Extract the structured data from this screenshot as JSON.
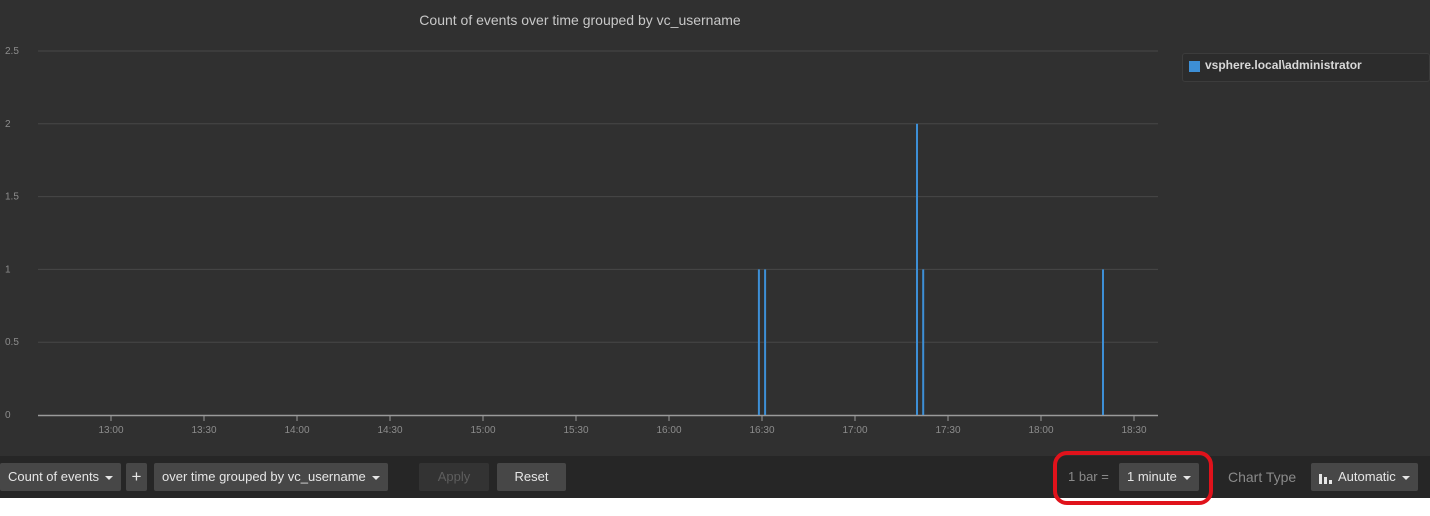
{
  "chart_data": {
    "type": "bar",
    "title": "Count of events over time grouped by vc_username",
    "xlabel": "",
    "ylabel": "",
    "ylim": [
      0,
      2.5
    ],
    "yticks": [
      "0",
      "0.5",
      "1",
      "1.5",
      "2",
      "2.5"
    ],
    "xticks": [
      "13:00",
      "13:30",
      "14:00",
      "14:30",
      "15:00",
      "15:30",
      "16:00",
      "16:30",
      "17:00",
      "17:30",
      "18:00",
      "18:30"
    ],
    "bar_interval": "1 minute",
    "grid": true,
    "legend_position": "right",
    "series": [
      {
        "name": "vsphere.local\\administrator",
        "color": "#3d8fd6",
        "points": [
          {
            "x": "16:29",
            "y": 1
          },
          {
            "x": "16:31",
            "y": 1
          },
          {
            "x": "17:20",
            "y": 2
          },
          {
            "x": "17:22",
            "y": 1
          },
          {
            "x": "18:20",
            "y": 1
          }
        ]
      }
    ]
  },
  "legend": {
    "items": [
      {
        "label": "vsphere.local\\administrator",
        "color": "#3d8fd6"
      }
    ]
  },
  "toolbar": {
    "count_label": "Count of events",
    "add_label": "+",
    "group_label": "over time grouped by vc_username",
    "apply_label": "Apply",
    "reset_label": "Reset",
    "bar_prefix": "1 bar =",
    "bar_value": "1 minute",
    "chart_type_label": "Chart Type",
    "chart_type_value": "Automatic"
  },
  "annotation": {
    "color": "#e0121b"
  }
}
